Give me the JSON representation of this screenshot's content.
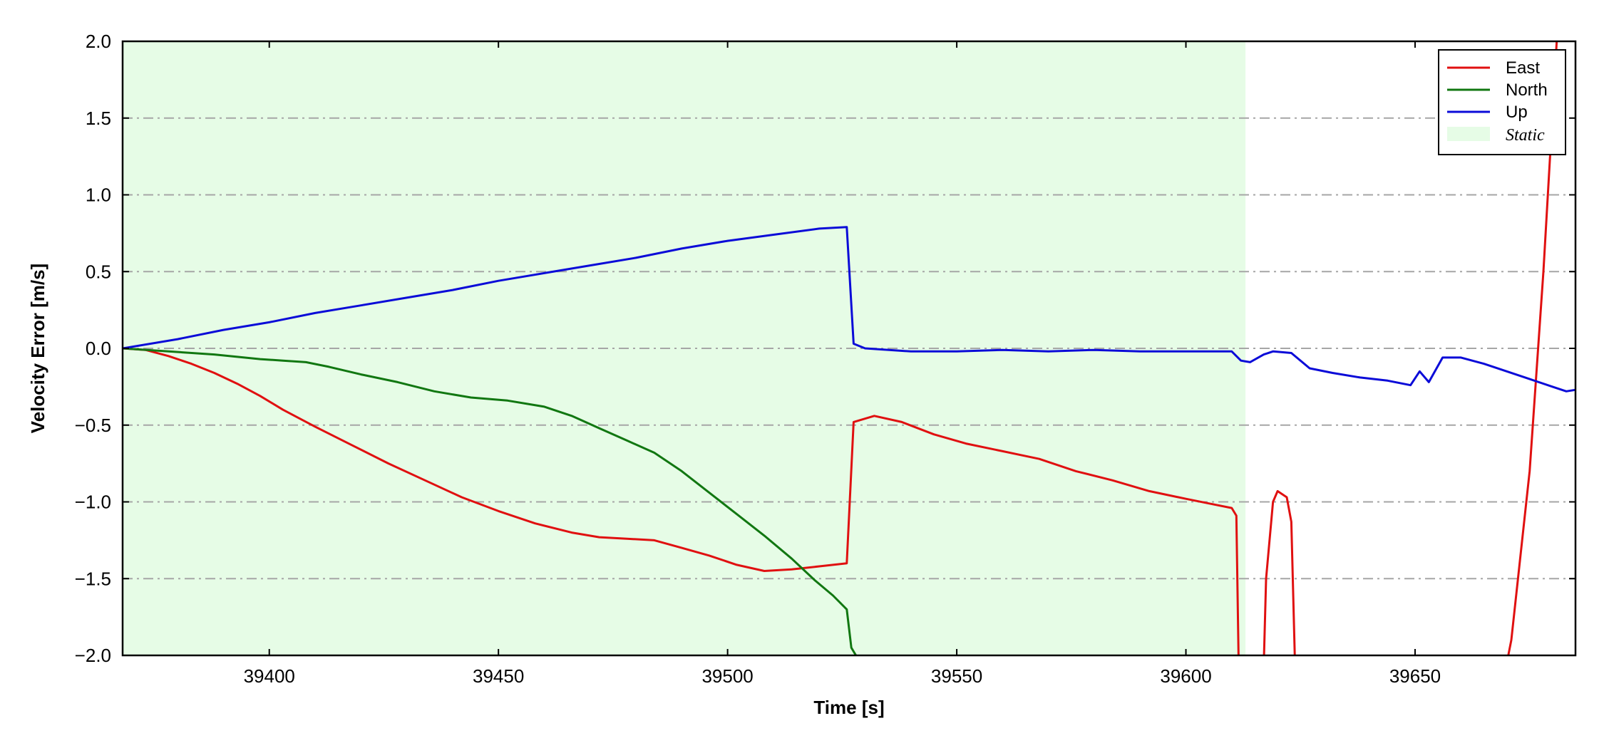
{
  "chart_data": {
    "type": "line",
    "title": "",
    "xlabel": "Time [s]",
    "ylabel": "Velocity Error [m/s]",
    "xlim": [
      39368,
      39685
    ],
    "ylim": [
      -2.0,
      2.0
    ],
    "x_ticks": [
      39400,
      39450,
      39500,
      39550,
      39600,
      39650
    ],
    "x_tick_labels": [
      "39400",
      "39450",
      "39500",
      "39550",
      "39600",
      "39650"
    ],
    "y_ticks": [
      -2.0,
      -1.5,
      -1.0,
      -0.5,
      0.0,
      0.5,
      1.0,
      1.5,
      2.0
    ],
    "y_tick_labels": [
      "−2.0",
      "−1.5",
      "−1.0",
      "−0.5",
      "0.0",
      "0.5",
      "1.0",
      "1.5",
      "2.0"
    ],
    "grid": "horizontal dash-dot",
    "legend_position": "top-right",
    "static_region": {
      "label": "Static",
      "x_range": [
        39368,
        39613
      ],
      "color": "#e6fce6"
    },
    "series": [
      {
        "name": "East",
        "color": "#e01010",
        "points": [
          [
            39368,
            0.0
          ],
          [
            39373,
            -0.01
          ],
          [
            39378,
            -0.05
          ],
          [
            39383,
            -0.1
          ],
          [
            39388,
            -0.16
          ],
          [
            39393,
            -0.23
          ],
          [
            39398,
            -0.31
          ],
          [
            39403,
            -0.4
          ],
          [
            39410,
            -0.51
          ],
          [
            39418,
            -0.63
          ],
          [
            39426,
            -0.75
          ],
          [
            39434,
            -0.86
          ],
          [
            39442,
            -0.97
          ],
          [
            39450,
            -1.06
          ],
          [
            39458,
            -1.14
          ],
          [
            39466,
            -1.2
          ],
          [
            39472,
            -1.23
          ],
          [
            39478,
            -1.24
          ],
          [
            39484,
            -1.25
          ],
          [
            39490,
            -1.3
          ],
          [
            39496,
            -1.35
          ],
          [
            39502,
            -1.41
          ],
          [
            39508,
            -1.45
          ],
          [
            39514,
            -1.44
          ],
          [
            39520,
            -1.42
          ],
          [
            39526,
            -1.4
          ],
          [
            39527.5,
            -0.48
          ],
          [
            39532,
            -0.44
          ],
          [
            39538,
            -0.48
          ],
          [
            39545,
            -0.56
          ],
          [
            39552,
            -0.62
          ],
          [
            39560,
            -0.67
          ],
          [
            39568,
            -0.72
          ],
          [
            39576,
            -0.8
          ],
          [
            39584,
            -0.86
          ],
          [
            39592,
            -0.93
          ],
          [
            39600,
            -0.98
          ],
          [
            39605,
            -1.01
          ],
          [
            39610,
            -1.04
          ],
          [
            39611,
            -1.09
          ],
          [
            39611.5,
            -2.05
          ],
          [
            39617,
            -2.05
          ],
          [
            39617.5,
            -1.5
          ],
          [
            39619,
            -1.0
          ],
          [
            39620,
            -0.93
          ],
          [
            39622,
            -0.97
          ],
          [
            39623,
            -1.13
          ],
          [
            39623.8,
            -2.05
          ],
          [
            39670,
            -2.05
          ],
          [
            39671,
            -1.9
          ],
          [
            39675,
            -0.8
          ],
          [
            39678,
            0.5
          ],
          [
            39681,
            2.05
          ]
        ]
      },
      {
        "name": "North",
        "color": "#117711",
        "points": [
          [
            39368,
            0.0
          ],
          [
            39378,
            -0.02
          ],
          [
            39388,
            -0.04
          ],
          [
            39398,
            -0.07
          ],
          [
            39403,
            -0.08
          ],
          [
            39408,
            -0.09
          ],
          [
            39413,
            -0.12
          ],
          [
            39420,
            -0.17
          ],
          [
            39428,
            -0.22
          ],
          [
            39436,
            -0.28
          ],
          [
            39444,
            -0.32
          ],
          [
            39452,
            -0.34
          ],
          [
            39460,
            -0.38
          ],
          [
            39466,
            -0.44
          ],
          [
            39472,
            -0.52
          ],
          [
            39478,
            -0.6
          ],
          [
            39484,
            -0.68
          ],
          [
            39490,
            -0.8
          ],
          [
            39496,
            -0.94
          ],
          [
            39502,
            -1.08
          ],
          [
            39508,
            -1.22
          ],
          [
            39514,
            -1.37
          ],
          [
            39519,
            -1.51
          ],
          [
            39523,
            -1.61
          ],
          [
            39526,
            -1.7
          ],
          [
            39527,
            -1.95
          ],
          [
            39529,
            -2.05
          ]
        ]
      },
      {
        "name": "Up",
        "color": "#0b0bd8",
        "points": [
          [
            39368,
            0.0
          ],
          [
            39380,
            0.06
          ],
          [
            39390,
            0.12
          ],
          [
            39400,
            0.17
          ],
          [
            39410,
            0.23
          ],
          [
            39420,
            0.28
          ],
          [
            39430,
            0.33
          ],
          [
            39440,
            0.38
          ],
          [
            39450,
            0.44
          ],
          [
            39460,
            0.49
          ],
          [
            39470,
            0.54
          ],
          [
            39480,
            0.59
          ],
          [
            39490,
            0.65
          ],
          [
            39500,
            0.7
          ],
          [
            39510,
            0.74
          ],
          [
            39520,
            0.78
          ],
          [
            39526,
            0.79
          ],
          [
            39527.5,
            0.03
          ],
          [
            39530,
            0.0
          ],
          [
            39540,
            -0.02
          ],
          [
            39550,
            -0.02
          ],
          [
            39560,
            -0.01
          ],
          [
            39570,
            -0.02
          ],
          [
            39580,
            -0.01
          ],
          [
            39590,
            -0.02
          ],
          [
            39600,
            -0.02
          ],
          [
            39610,
            -0.02
          ],
          [
            39612,
            -0.08
          ],
          [
            39614,
            -0.09
          ],
          [
            39617,
            -0.04
          ],
          [
            39619,
            -0.02
          ],
          [
            39623,
            -0.03
          ],
          [
            39627,
            -0.13
          ],
          [
            39632,
            -0.16
          ],
          [
            39638,
            -0.19
          ],
          [
            39644,
            -0.21
          ],
          [
            39649,
            -0.24
          ],
          [
            39651,
            -0.15
          ],
          [
            39653,
            -0.22
          ],
          [
            39656,
            -0.06
          ],
          [
            39660,
            -0.06
          ],
          [
            39665,
            -0.1
          ],
          [
            39670,
            -0.15
          ],
          [
            39675,
            -0.2
          ],
          [
            39680,
            -0.25
          ],
          [
            39683,
            -0.28
          ],
          [
            39685,
            -0.27
          ]
        ]
      }
    ]
  }
}
